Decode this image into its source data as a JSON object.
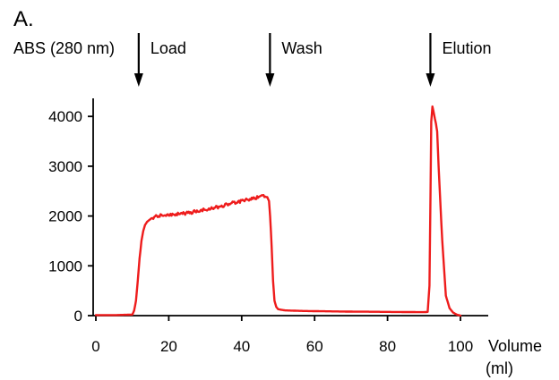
{
  "panel_label": "A.",
  "chart_data": {
    "type": "line",
    "ylabel": "ABS (280 nm)",
    "xlabel": [
      "Volume",
      "(ml)"
    ],
    "xlim": [
      0,
      108
    ],
    "ylim": [
      -60,
      4500
    ],
    "xticks": [
      0,
      20,
      40,
      60,
      80,
      100
    ],
    "yticks": [
      0,
      1000,
      2000,
      3000,
      4000
    ],
    "grid": false,
    "legend": "none",
    "color": "#ee1c1c",
    "annotations": [
      {
        "label": "Load",
        "x": 12
      },
      {
        "label": "Wash",
        "x": 48
      },
      {
        "label": "Elution",
        "x": 92
      }
    ],
    "series": [
      {
        "x": [
          0,
          5,
          10,
          10.5,
          11,
          11.5,
          12,
          12.5,
          13,
          13.5,
          14,
          15,
          16,
          17,
          18,
          20,
          22,
          24,
          26,
          28,
          30,
          32,
          34,
          36,
          38,
          40,
          42,
          44,
          45,
          46,
          47,
          47.5,
          47.8,
          48.2,
          48.6,
          49,
          49.5,
          50,
          51,
          52,
          54,
          56,
          60,
          65,
          70,
          75,
          80,
          85,
          90,
          91,
          91.5,
          91.8,
          92,
          92.3,
          92.6,
          93,
          93.3,
          93.6,
          94,
          95,
          96,
          97,
          98,
          99,
          100
        ],
        "y": [
          10,
          10,
          20,
          100,
          300,
          700,
          1150,
          1500,
          1700,
          1820,
          1880,
          1940,
          1980,
          2000,
          2020,
          2030,
          2040,
          2050,
          2070,
          2100,
          2130,
          2160,
          2190,
          2230,
          2270,
          2300,
          2330,
          2370,
          2400,
          2420,
          2380,
          2300,
          2000,
          1400,
          700,
          300,
          170,
          130,
          115,
          105,
          100,
          95,
          90,
          85,
          80,
          78,
          75,
          72,
          70,
          75,
          600,
          2500,
          3900,
          4200,
          4100,
          3950,
          3850,
          3700,
          3000,
          1500,
          400,
          150,
          60,
          20,
          0
        ]
      }
    ]
  }
}
